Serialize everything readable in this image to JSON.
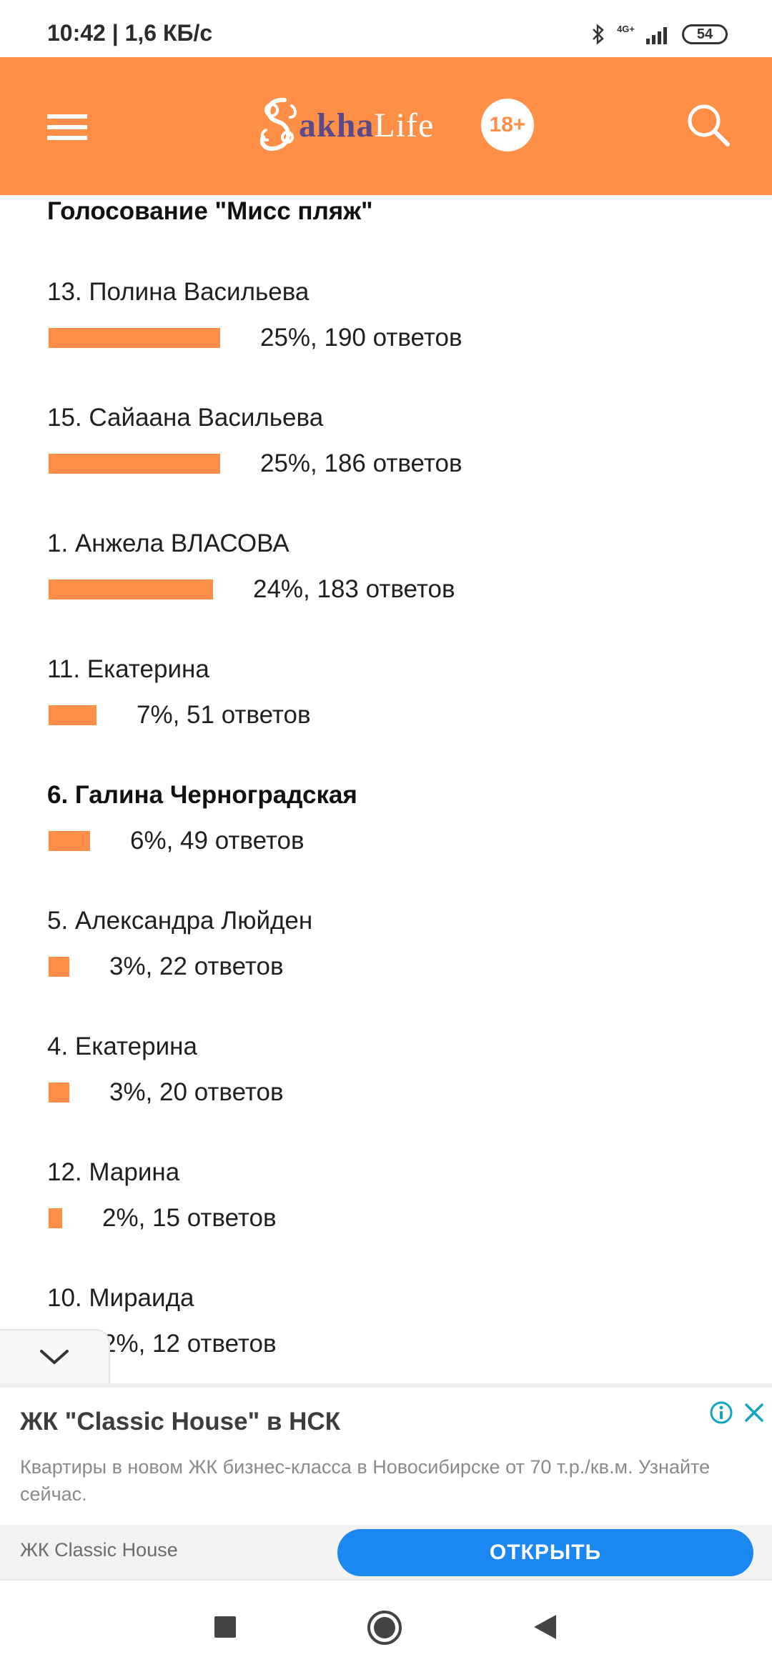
{
  "status_bar": {
    "time": "10:42 | 1,6 КБ/с",
    "network": "4G+",
    "battery": "54",
    "icons": [
      "bluetooth-icon",
      "signal-icon",
      "battery-icon"
    ]
  },
  "header": {
    "logo_prefix": "akha",
    "logo_suffix": "Life",
    "age_badge": "18+",
    "icons": [
      "menu-icon",
      "search-icon"
    ],
    "colors": {
      "brand": "#ff8e47",
      "logo_purple": "#5b4a8a"
    }
  },
  "poll": {
    "title": "Голосование \"Мисс пляж\"",
    "items": [
      {
        "name": "13. Полина Васильева",
        "result": "25%, 190 ответов",
        "percent": 25,
        "bold": false
      },
      {
        "name": "15. Сайаана Васильева",
        "result": "25%, 186 ответов",
        "percent": 25,
        "bold": false
      },
      {
        "name": "1. Анжела ВЛАСОВА",
        "result": "24%, 183 ответов",
        "percent": 24,
        "bold": false
      },
      {
        "name": "11. Екатерина",
        "result": "7%, 51 ответов",
        "percent": 7,
        "bold": false
      },
      {
        "name": "6. Галина Черноградская",
        "result": "6%, 49 ответов",
        "percent": 6,
        "bold": true
      },
      {
        "name": "5. Александра Люйден",
        "result": "3%, 22 ответов",
        "percent": 3,
        "bold": false
      },
      {
        "name": "4. Екатерина",
        "result": "3%, 20 ответов",
        "percent": 3,
        "bold": false
      },
      {
        "name": "12. Марина",
        "result": "2%, 15 ответов",
        "percent": 2,
        "bold": false
      },
      {
        "name": "10. Мираида",
        "result": "2%, 12 ответов",
        "percent": 2,
        "bold": false
      }
    ]
  },
  "ad": {
    "title": "ЖК \"Classic House\" в НСК",
    "description": "Квартиры в новом ЖК бизнес-класса в Новосибирске от 70 т.р./кв.м. Узнайте сейчас.",
    "advertiser": "ЖК Classic House",
    "cta": "ОТКРЫТЬ",
    "icons": [
      "info-icon",
      "close-icon",
      "chevron-down-icon"
    ],
    "colors": {
      "cta": "#1a88f0",
      "icon": "#10a3c4"
    }
  },
  "nav_bar": {
    "icons": [
      "recents-icon",
      "home-icon",
      "back-icon"
    ]
  }
}
